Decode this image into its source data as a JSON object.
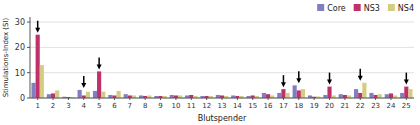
{
  "chart_data": {
    "type": "bar",
    "xlabel": "Blutspender",
    "ylabel": "Stimulations-Index (SI)",
    "categories": [
      1,
      2,
      3,
      4,
      5,
      6,
      7,
      8,
      9,
      10,
      11,
      12,
      13,
      14,
      15,
      16,
      17,
      18,
      19,
      20,
      21,
      22,
      23,
      24,
      25
    ],
    "series": [
      {
        "name": "Core",
        "color": "#8080c0",
        "values": [
          6.0,
          1.5,
          0.5,
          3.2,
          2.8,
          1.2,
          1.5,
          1.0,
          0.8,
          1.2,
          1.0,
          0.8,
          1.2,
          1.0,
          0.8,
          2.0,
          2.0,
          5.0,
          1.0,
          1.2,
          1.5,
          3.5,
          2.0,
          1.5,
          2.0
        ]
      },
      {
        "name": "NS3",
        "color": "#c0306a",
        "values": [
          25.0,
          1.8,
          0.4,
          1.0,
          10.5,
          1.0,
          1.0,
          0.8,
          0.8,
          1.0,
          1.2,
          0.8,
          1.0,
          0.8,
          1.0,
          1.5,
          3.5,
          3.0,
          0.5,
          4.5,
          1.2,
          2.0,
          1.2,
          1.8,
          4.5
        ]
      },
      {
        "name": "NS4",
        "color": "#d4cc80",
        "values": [
          13.0,
          3.0,
          0.4,
          2.5,
          2.5,
          2.8,
          1.0,
          1.0,
          0.8,
          1.0,
          0.8,
          0.8,
          0.8,
          0.8,
          0.8,
          1.0,
          2.0,
          3.5,
          0.6,
          1.0,
          1.0,
          6.0,
          1.5,
          1.0,
          3.5
        ]
      }
    ],
    "arrows": [
      1,
      4,
      5,
      17,
      18,
      20,
      22,
      25
    ],
    "ylim": [
      0,
      32
    ],
    "yticks": [
      0,
      10,
      20,
      30
    ],
    "grid": true,
    "legend": "upper right"
  }
}
